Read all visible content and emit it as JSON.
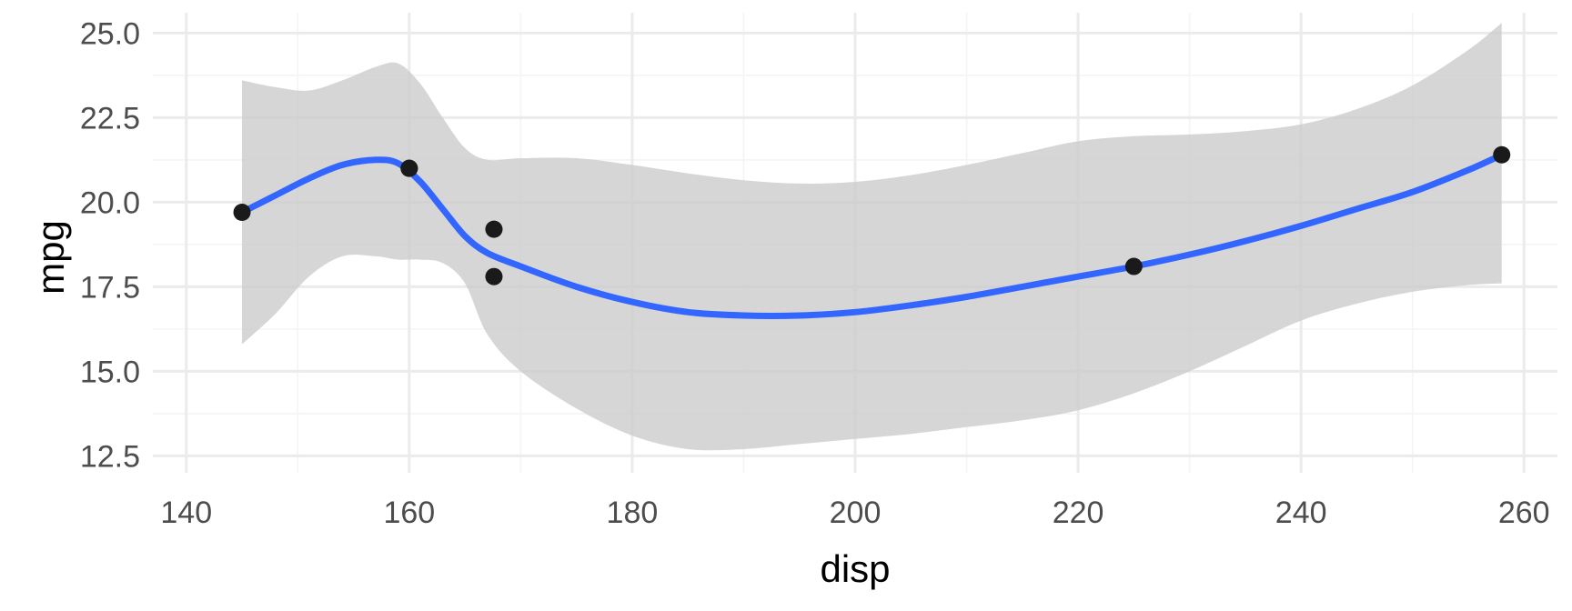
{
  "chart_data": {
    "type": "scatter",
    "xlabel": "disp",
    "ylabel": "mpg",
    "xlim": [
      137,
      263
    ],
    "ylim": [
      12.0,
      25.6
    ],
    "x_ticks": [
      140,
      160,
      180,
      200,
      220,
      240,
      260
    ],
    "x_tick_labels": [
      "140",
      "160",
      "180",
      "200",
      "220",
      "240",
      "260"
    ],
    "y_ticks": [
      12.5,
      15.0,
      17.5,
      20.0,
      22.5,
      25.0
    ],
    "y_tick_labels": [
      "12.5",
      "15.0",
      "17.5",
      "20.0",
      "22.5",
      "25.0"
    ],
    "grid": true,
    "points": [
      {
        "x": 145.0,
        "y": 19.7
      },
      {
        "x": 160.0,
        "y": 21.0
      },
      {
        "x": 160.0,
        "y": 21.0
      },
      {
        "x": 167.6,
        "y": 19.2
      },
      {
        "x": 167.6,
        "y": 17.8
      },
      {
        "x": 225.0,
        "y": 18.1
      },
      {
        "x": 258.0,
        "y": 21.4
      }
    ],
    "smooth": {
      "x": [
        145,
        148,
        151,
        154,
        157,
        159,
        161,
        163,
        165,
        167,
        170,
        175,
        180,
        185,
        190,
        195,
        200,
        205,
        210,
        215,
        220,
        225,
        230,
        235,
        240,
        245,
        250,
        255,
        258
      ],
      "y": [
        19.7,
        20.2,
        20.7,
        21.1,
        21.25,
        21.15,
        20.6,
        19.8,
        19.0,
        18.5,
        18.1,
        17.5,
        17.05,
        16.75,
        16.65,
        16.65,
        16.75,
        16.95,
        17.2,
        17.5,
        17.8,
        18.1,
        18.45,
        18.85,
        19.3,
        19.8,
        20.3,
        20.95,
        21.4
      ],
      "lower": [
        15.8,
        16.7,
        17.8,
        18.4,
        18.4,
        18.3,
        18.3,
        18.2,
        17.6,
        16.1,
        15.0,
        13.9,
        13.1,
        12.7,
        12.7,
        12.85,
        13.0,
        13.15,
        13.35,
        13.55,
        13.85,
        14.35,
        15.0,
        15.75,
        16.5,
        17.0,
        17.35,
        17.55,
        17.6
      ],
      "upper": [
        23.6,
        23.4,
        23.3,
        23.6,
        24.0,
        24.1,
        23.5,
        22.5,
        21.6,
        21.25,
        21.3,
        21.3,
        21.1,
        20.85,
        20.65,
        20.55,
        20.6,
        20.8,
        21.1,
        21.45,
        21.8,
        21.95,
        22.0,
        22.1,
        22.3,
        22.75,
        23.45,
        24.5,
        25.3
      ]
    },
    "colors": {
      "line": "#3366ff",
      "ribbon": "#cccccc",
      "points": "#1a1a1a"
    }
  }
}
